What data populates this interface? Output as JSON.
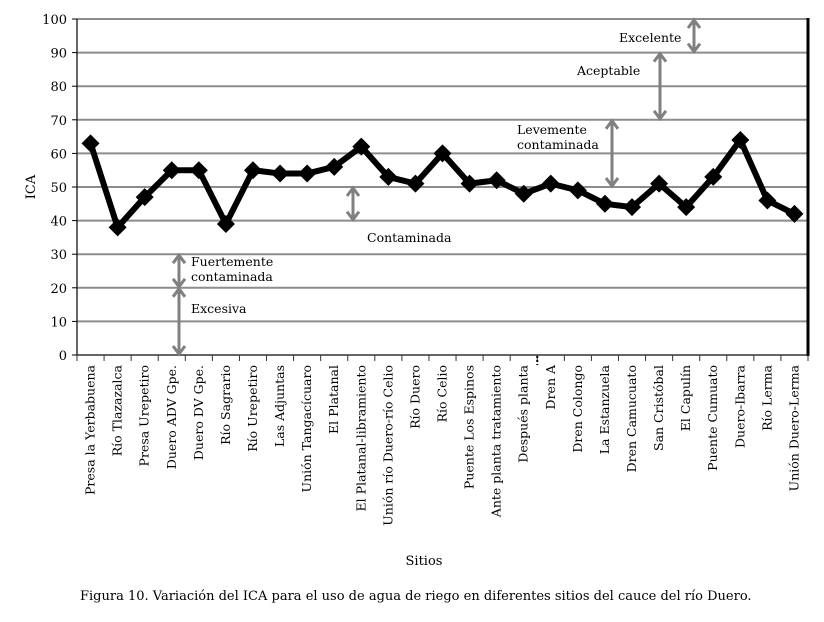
{
  "chart_data": {
    "type": "line",
    "title": "",
    "xlabel": "Sitios",
    "ylabel": "ICA",
    "ylim": [
      0,
      100
    ],
    "yticks": [
      0,
      10,
      20,
      30,
      40,
      50,
      60,
      70,
      80,
      90,
      100
    ],
    "grid": true,
    "legend": "none",
    "categories": [
      "Presa la Yerbabuena",
      "Río Tlazazalca",
      "Presa Urepetiro",
      "Duero ADV Gpe.",
      "Duero DV Gpe.",
      "Río Sagrario",
      "Río Urepetiro",
      "Las Adjuntas",
      "Unión Tangacícuaro",
      "El Platanal",
      "El Platanal-libramiento",
      "Unión río Duero-río Celio",
      "Río Duero",
      "Río Celio",
      "Puente Los Espinos",
      "Ante planta tratamiento",
      "Después planta",
      "Dren A",
      "Dren Colongo",
      "La Estanzuela",
      "Dren Camucuato",
      "San Cristóbal",
      "El Capulín",
      "Puente Cumuato",
      "Duero-Ibarra",
      "Río Lerma",
      "Unión Duero-Lerma"
    ],
    "values": [
      63,
      38,
      47,
      55,
      55,
      39,
      55,
      54,
      54,
      56,
      62,
      53,
      51,
      60,
      51,
      52,
      48,
      51,
      49,
      45,
      44,
      51,
      44,
      53,
      64,
      46,
      42
    ],
    "series_color": "#000000",
    "grid_color": "#8c8c8c",
    "annotation_color": "#808080",
    "annotations": [
      {
        "lines": [
          "Excelente"
        ],
        "range": [
          90,
          100
        ]
      },
      {
        "lines": [
          "Aceptable"
        ],
        "range": [
          70,
          90
        ]
      },
      {
        "lines": [
          "Levemente",
          "contaminada"
        ],
        "range": [
          50,
          70
        ]
      },
      {
        "lines": [
          "Contaminada"
        ],
        "range": [
          40,
          50
        ]
      },
      {
        "lines": [
          "Fuertemente",
          "contaminada"
        ],
        "range": [
          20,
          30
        ]
      },
      {
        "lines": [
          "Excesiva"
        ],
        "range": [
          0,
          20
        ]
      }
    ]
  },
  "caption": "Figura 10. Variación del ICA para el uso de agua de riego en diferentes sitios del cauce del río Duero."
}
